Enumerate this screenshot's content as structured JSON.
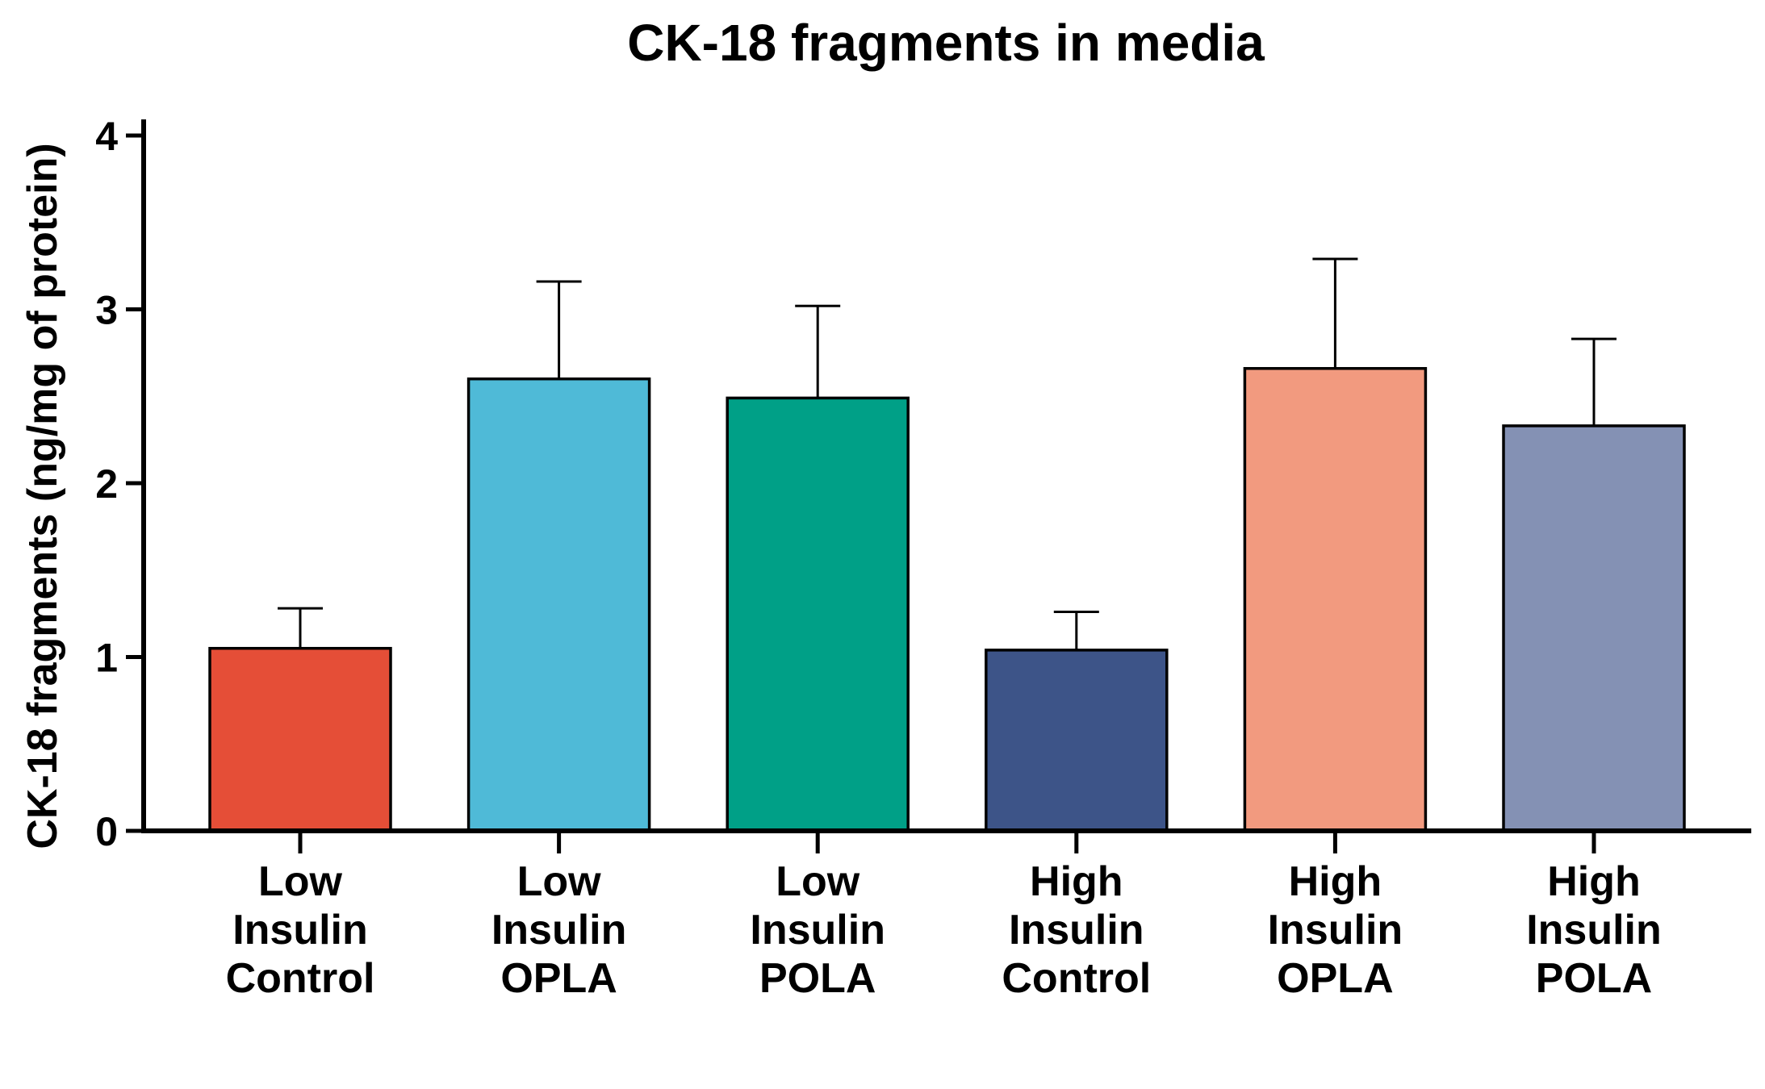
{
  "chart_data": {
    "type": "bar",
    "title": "CK-18 fragments in media",
    "xlabel": "",
    "ylabel": "CK-18 fragments (ng/mg of protein)",
    "ylim": [
      0,
      4
    ],
    "yticks": [
      "0",
      "1",
      "2",
      "3",
      "4"
    ],
    "grid": false,
    "legend": "none",
    "categories": [
      [
        "Low",
        "Insulin",
        "Control"
      ],
      [
        "Low",
        "Insulin",
        "OPLA"
      ],
      [
        "Low",
        "Insulin",
        "POLA"
      ],
      [
        "High",
        "Insulin",
        "Control"
      ],
      [
        "High",
        "Insulin",
        "OPLA"
      ],
      [
        "High",
        "Insulin",
        "POLA"
      ]
    ],
    "values": [
      1.05,
      2.6,
      2.49,
      1.04,
      2.66,
      2.33
    ],
    "error_upper": [
      1.28,
      3.16,
      3.02,
      1.26,
      3.29,
      2.83
    ],
    "colors": [
      "#E54E37",
      "#4FBAD7",
      "#00A087",
      "#3D5488",
      "#F29A7F",
      "#8491B4"
    ]
  }
}
